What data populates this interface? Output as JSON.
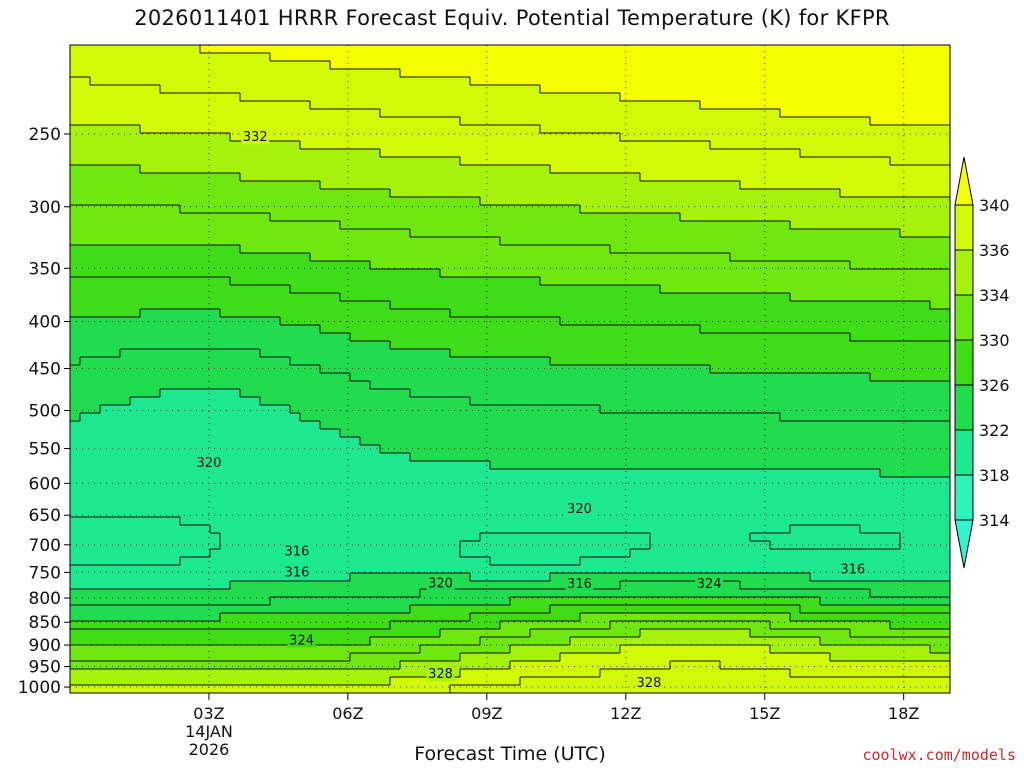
{
  "title": "2026011401 HRRR Forecast Equiv. Potential Temperature (K) for KFPR",
  "credit": "coolwx.com/models",
  "chart_data": {
    "type": "contour",
    "title": "2026011401 HRRR Forecast Equiv. Potential Temperature (K) for KFPR",
    "xlabel": "Forecast Time (UTC)",
    "ylabel": "",
    "x_ticks": [
      {
        "hour": 3,
        "label": "03Z",
        "sub": [
          "14JAN",
          "2026"
        ]
      },
      {
        "hour": 6,
        "label": "06Z"
      },
      {
        "hour": 9,
        "label": "09Z"
      },
      {
        "hour": 12,
        "label": "12Z"
      },
      {
        "hour": 15,
        "label": "15Z"
      },
      {
        "hour": 18,
        "label": "18Z"
      }
    ],
    "xlim": [
      0,
      19
    ],
    "y_ticks": [
      "250",
      "300",
      "350",
      "400",
      "450",
      "500",
      "550",
      "600",
      "650",
      "700",
      "750",
      "800",
      "850",
      "900",
      "950",
      "1000"
    ],
    "ylim_hpa": [
      1015,
      200
    ],
    "y_scale": "log-pressure",
    "grid": "dotted",
    "colorbar": {
      "levels": [
        "314",
        "318",
        "322",
        "326",
        "330",
        "334",
        "336",
        "340"
      ],
      "bands": [
        {
          "lo": 314,
          "hi": 318,
          "color": "#2ff2b8"
        },
        {
          "lo": 318,
          "hi": 322,
          "color": "#1ee88f"
        },
        {
          "lo": 322,
          "hi": 326,
          "color": "#22dc4f"
        },
        {
          "lo": 326,
          "hi": 330,
          "color": "#3fdc18"
        },
        {
          "lo": 330,
          "hi": 334,
          "color": "#6fe812"
        },
        {
          "lo": 334,
          "hi": 336,
          "color": "#a7f20c"
        },
        {
          "lo": 336,
          "hi": 340,
          "color": "#d2fa08"
        },
        {
          "lo": 340,
          "hi": 344,
          "color": "#f4ff00"
        }
      ],
      "under_color": "#33f2d2",
      "over_color": "#f4ff00"
    },
    "ground_color": "#a5502c",
    "contour_labels": [
      {
        "text": "332",
        "x": 4.0,
        "p": 252
      },
      {
        "text": "320",
        "x": 3.0,
        "p": 570
      },
      {
        "text": "320",
        "x": 11.0,
        "p": 640
      },
      {
        "text": "316",
        "x": 4.9,
        "p": 712
      },
      {
        "text": "316",
        "x": 4.9,
        "p": 750
      },
      {
        "text": "320",
        "x": 8.0,
        "p": 771
      },
      {
        "text": "316",
        "x": 11.0,
        "p": 772
      },
      {
        "text": "324",
        "x": 13.8,
        "p": 772
      },
      {
        "text": "316",
        "x": 16.9,
        "p": 745
      },
      {
        "text": "324",
        "x": 5.0,
        "p": 890
      },
      {
        "text": "328",
        "x": 8.0,
        "p": 968
      },
      {
        "text": "328",
        "x": 12.5,
        "p": 990
      }
    ]
  }
}
